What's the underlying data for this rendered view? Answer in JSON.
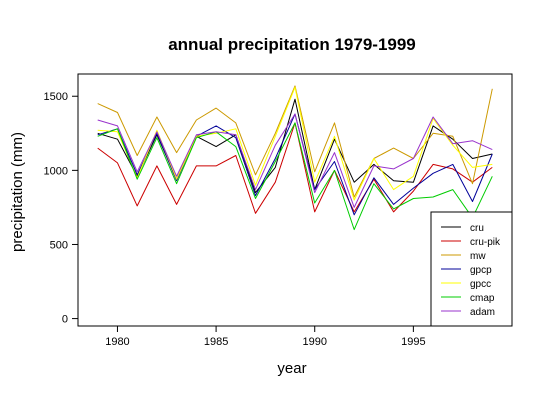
{
  "chart_data": {
    "type": "line",
    "title": "annual precipitation 1979-1999",
    "xlabel": "year",
    "ylabel": "precipitation (mm)",
    "x": [
      1979,
      1980,
      1981,
      1982,
      1983,
      1984,
      1985,
      1986,
      1987,
      1988,
      1989,
      1990,
      1991,
      1992,
      1993,
      1994,
      1995,
      1996,
      1997,
      1998,
      1999
    ],
    "xlim": [
      1978,
      2000
    ],
    "ylim": [
      -50,
      1650
    ],
    "x_ticks": [
      1980,
      1985,
      1990,
      1995
    ],
    "y_ticks": [
      0,
      500,
      1000,
      1500
    ],
    "grid": false,
    "legend_position": "bottom-right",
    "series": [
      {
        "name": "cru",
        "color": "#000000",
        "values": [
          1250,
          1210,
          960,
          1240,
          940,
          1230,
          1160,
          1240,
          850,
          1020,
          1480,
          870,
          1210,
          920,
          1040,
          930,
          920,
          1300,
          1210,
          1080,
          1110
        ]
      },
      {
        "name": "cru-pik",
        "color": "#cc0000",
        "values": [
          1150,
          1050,
          760,
          1030,
          770,
          1030,
          1030,
          1100,
          710,
          920,
          1320,
          720,
          1000,
          720,
          940,
          720,
          860,
          1040,
          1010,
          920,
          1020
        ]
      },
      {
        "name": "mw",
        "color": "#cc9900",
        "values": [
          1450,
          1390,
          1100,
          1360,
          1120,
          1340,
          1420,
          1320,
          970,
          1250,
          1570,
          990,
          1320,
          820,
          1080,
          1150,
          1080,
          1250,
          1230,
          910,
          1550
        ]
      },
      {
        "name": "gpcp",
        "color": "#000099",
        "values": [
          1240,
          1280,
          970,
          1250,
          930,
          1230,
          1300,
          1220,
          830,
          1080,
          1380,
          870,
          1060,
          700,
          950,
          770,
          880,
          980,
          1040,
          790,
          1110
        ]
      },
      {
        "name": "gpcc",
        "color": "#ffff00",
        "values": [
          1270,
          1260,
          950,
          1270,
          940,
          1230,
          1250,
          1280,
          900,
          1230,
          1560,
          920,
          1230,
          800,
          1080,
          870,
          960,
          1350,
          1170,
          1020,
          1040
        ]
      },
      {
        "name": "cmap",
        "color": "#00cc00",
        "values": [
          1230,
          1280,
          940,
          1220,
          910,
          1220,
          1260,
          1160,
          810,
          1060,
          1320,
          780,
          1000,
          600,
          910,
          740,
          810,
          820,
          870,
          680,
          960
        ]
      },
      {
        "name": "adam",
        "color": "#9933cc",
        "values": [
          1340,
          1300,
          990,
          1260,
          960,
          1240,
          1260,
          1240,
          870,
          1170,
          1380,
          850,
          1120,
          750,
          1030,
          1010,
          1080,
          1360,
          1180,
          1200,
          1140
        ]
      }
    ]
  }
}
